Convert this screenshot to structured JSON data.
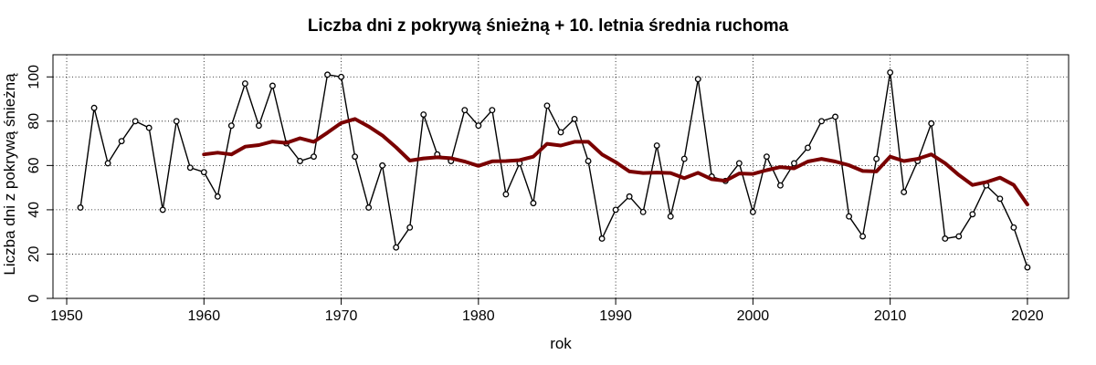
{
  "chart_data": {
    "type": "line",
    "title": "Liczba dni z pokrywą śnieżną + 10. letnia średnia ruchoma",
    "xlabel": "rok",
    "ylabel": "Liczba dni z pokrywą śnieżną",
    "xlim": [
      1949,
      2023
    ],
    "ylim": [
      0,
      110
    ],
    "xticks": [
      1950,
      1960,
      1970,
      1980,
      1990,
      2000,
      2010,
      2020
    ],
    "yticks": [
      0,
      20,
      40,
      60,
      80,
      100
    ],
    "grid": true,
    "series": [
      {
        "type": "line-points",
        "color": "#000000",
        "x": [
          1951,
          1952,
          1953,
          1954,
          1955,
          1956,
          1957,
          1958,
          1959,
          1960,
          1961,
          1962,
          1963,
          1964,
          1965,
          1966,
          1967,
          1968,
          1969,
          1970,
          1971,
          1972,
          1973,
          1974,
          1975,
          1976,
          1977,
          1978,
          1979,
          1980,
          1981,
          1982,
          1983,
          1984,
          1985,
          1986,
          1987,
          1988,
          1989,
          1990,
          1991,
          1992,
          1993,
          1994,
          1995,
          1996,
          1997,
          1998,
          1999,
          2000,
          2001,
          2002,
          2003,
          2004,
          2005,
          2006,
          2007,
          2008,
          2009,
          2010,
          2011,
          2012,
          2013,
          2014,
          2015,
          2016,
          2017,
          2018,
          2019,
          2020
        ],
        "y": [
          41,
          86,
          61,
          71,
          80,
          77,
          40,
          80,
          59,
          57,
          46,
          78,
          97,
          78,
          96,
          70,
          62,
          64,
          101,
          100,
          64,
          41,
          60,
          23,
          32,
          83,
          65,
          62,
          85,
          78,
          85,
          47,
          61,
          43,
          87,
          75,
          81,
          62,
          27,
          40,
          46,
          39,
          69,
          37,
          63,
          99,
          55,
          53,
          61,
          39,
          64,
          51,
          61,
          68,
          80,
          82,
          37,
          28,
          63,
          102,
          48,
          62,
          79,
          27,
          28,
          38,
          51,
          45,
          32,
          14
        ]
      },
      {
        "type": "line",
        "color": "#7a0000",
        "x": [
          1960,
          1961,
          1962,
          1963,
          1964,
          1965,
          1966,
          1967,
          1968,
          1969,
          1970,
          1971,
          1972,
          1973,
          1974,
          1975,
          1976,
          1977,
          1978,
          1979,
          1980,
          1981,
          1982,
          1983,
          1984,
          1985,
          1986,
          1987,
          1988,
          1989,
          1990,
          1991,
          1992,
          1993,
          1994,
          1995,
          1996,
          1997,
          1998,
          1999,
          2000,
          2001,
          2002,
          2003,
          2004,
          2005,
          2006,
          2007,
          2008,
          2009,
          2010,
          2011,
          2012,
          2013,
          2014,
          2015,
          2016,
          2017,
          2018,
          2019,
          2020
        ],
        "y": [
          65,
          65.8,
          65,
          68.5,
          69.2,
          70.8,
          70.2,
          72.3,
          70.7,
          74.8,
          79.2,
          81,
          77.6,
          73.6,
          68.2,
          62.2,
          63.2,
          63.7,
          63.3,
          61.8,
          59.8,
          61.9,
          62,
          62.4,
          64,
          69.8,
          69,
          70.7,
          70.7,
          65,
          61.5,
          57.3,
          56.6,
          56.8,
          56.6,
          54.3,
          56.7,
          53.8,
          53.1,
          56.4,
          56.2,
          57.9,
          59.3,
          58.7,
          61.8,
          63,
          61.8,
          60.1,
          57.5,
          57.3,
          64,
          62,
          63,
          65,
          61,
          55.7,
          51.2,
          52.5,
          54.5,
          51.2,
          42.4
        ]
      }
    ]
  }
}
